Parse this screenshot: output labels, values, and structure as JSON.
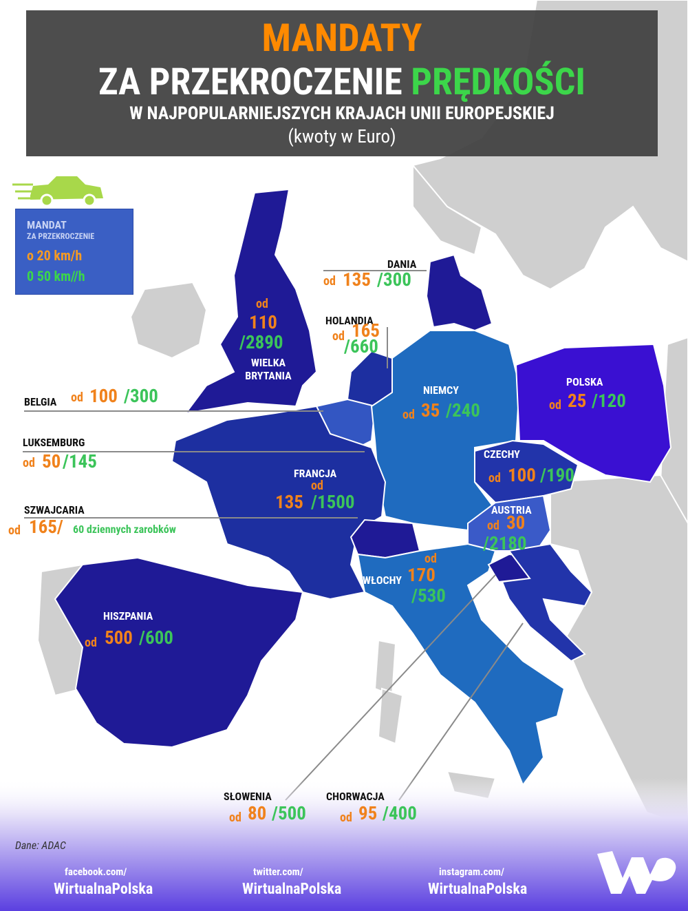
{
  "header": {
    "title": "MANDATY",
    "subtitle_white": "ZA PRZEKROCZENIE",
    "subtitle_green": "PRĘDKOŚCI",
    "subheading": "W NAJPOPULARNIEJSZYCH KRAJACH UNII EUROPEJSKIEJ",
    "note": "(kwoty w Euro)"
  },
  "legend": {
    "title": "MANDAT",
    "subtitle": "ZA PRZEKROCZENIE",
    "low": "o 20 km/h",
    "high": "0 50 km//h"
  },
  "countries": [
    {
      "name": "WIELKA BRYTANIA",
      "prefix": "od",
      "low": "110",
      "high": "/2890"
    },
    {
      "name": "DANIA",
      "prefix": "od",
      "low": "135",
      "high": "/300"
    },
    {
      "name": "HOLANDIA",
      "prefix": "od",
      "low": "165",
      "high": "/660"
    },
    {
      "name": "BELGIA",
      "prefix": "od",
      "low": "100",
      "high": "/300"
    },
    {
      "name": "LUKSEMBURG",
      "prefix": "od",
      "low": "50",
      "high": "/145"
    },
    {
      "name": "NIEMCY",
      "prefix": "od",
      "low": "35",
      "high": "/240"
    },
    {
      "name": "POLSKA",
      "prefix": "od",
      "low": "25",
      "high": "/120"
    },
    {
      "name": "CZECHY",
      "prefix": "od",
      "low": "100",
      "high": "/190"
    },
    {
      "name": "FRANCJA",
      "prefix": "od",
      "low": "135",
      "high": "/1500"
    },
    {
      "name": "SZWAJCARIA",
      "prefix": "od",
      "low": "165/",
      "high": "60 dziennych zarobków"
    },
    {
      "name": "AUSTRIA",
      "prefix": "od",
      "low": "30",
      "high": "/2180"
    },
    {
      "name": "WŁOCHY",
      "prefix": "od",
      "low": "170",
      "high": "/530"
    },
    {
      "name": "HISZPANIA",
      "prefix": "od",
      "low": "500",
      "high": "/600"
    },
    {
      "name": "SŁOWENIA",
      "prefix": "od",
      "low": "80",
      "high": "/500"
    },
    {
      "name": "CHORWACJA",
      "prefix": "od",
      "low": "95",
      "high": "/400"
    }
  ],
  "footer": {
    "source": "Dane:  ADAC",
    "social": [
      {
        "url": "facebook.com/",
        "handle": "WirtualnaPolska"
      },
      {
        "url": "twitter.com/",
        "handle": "WirtualnaPolska"
      },
      {
        "url": "instagram.com/",
        "handle": "WirtualnaPolska"
      }
    ]
  }
}
